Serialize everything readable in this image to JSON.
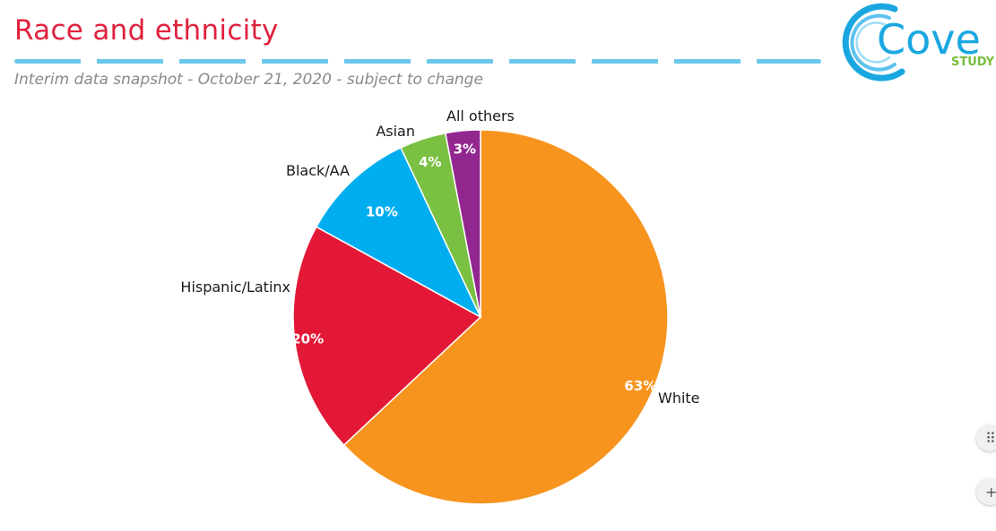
{
  "slide": {
    "title": "Race and ethnicity",
    "subtitle": "Interim data snapshot - October 21, 2020 - subject to change"
  },
  "logo": {
    "word": "Cove",
    "sub": "STUDY",
    "colors": {
      "ring": "#1aa7e0",
      "sub": "#77bd3a"
    }
  },
  "side_controls": [
    {
      "icon": "move-icon",
      "glyph": "⠿"
    },
    {
      "icon": "plus-icon",
      "glyph": "+"
    }
  ],
  "chart_data": {
    "type": "pie",
    "title": "",
    "start_angle_deg": 0,
    "direction": "clockwise",
    "slices": [
      {
        "label": "White",
        "value": 63,
        "pct_label": "63%",
        "color": "#f7941e"
      },
      {
        "label": "Hispanic/Latinx",
        "value": 20,
        "pct_label": "20%",
        "color": "#e31837"
      },
      {
        "label": "Black/AA",
        "value": 10,
        "pct_label": "10%",
        "color": "#00aeef"
      },
      {
        "label": "Asian",
        "value": 4,
        "pct_label": "4%",
        "color": "#7ac143"
      },
      {
        "label": "All others",
        "value": 3,
        "pct_label": "3%",
        "color": "#92278f"
      }
    ]
  }
}
